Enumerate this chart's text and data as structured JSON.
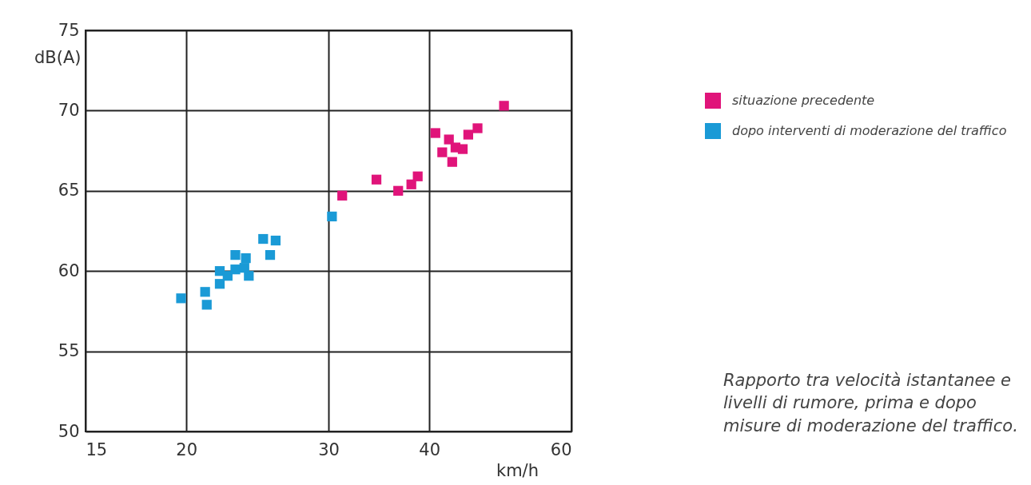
{
  "chart_data": {
    "type": "scatter",
    "xlabel": "km/h",
    "ylabel": "dB(A)",
    "log": "x",
    "xlim": [
      15,
      60
    ],
    "xticks": [
      15,
      20,
      30,
      40,
      60
    ],
    "ylim": [
      50,
      75
    ],
    "yticks": [
      50,
      55,
      60,
      65,
      70,
      75
    ],
    "grid": true,
    "marker": "square",
    "legend": "right",
    "series": [
      {
        "name": "situazione precedente",
        "color": "#e0147a",
        "x": [
          31.2,
          34.4,
          36.6,
          38.0,
          38.7,
          40.7,
          41.5,
          42.3,
          42.7,
          43.1,
          44.0,
          44.7,
          45.9,
          49.5
        ],
        "values": [
          64.7,
          65.7,
          65.0,
          65.4,
          65.9,
          68.6,
          67.4,
          68.2,
          66.8,
          67.7,
          67.6,
          68.5,
          68.9,
          70.3
        ]
      },
      {
        "name": "dopo interventi di moderazione del traffico",
        "color": "#1a9ad6",
        "x": [
          19.7,
          21.1,
          21.2,
          22.0,
          22.0,
          22.5,
          23.0,
          23.0,
          23.6,
          23.7,
          23.9,
          24.9,
          25.4,
          25.8,
          30.3
        ],
        "values": [
          58.3,
          58.7,
          57.9,
          59.2,
          60.0,
          59.7,
          60.1,
          61.0,
          60.2,
          60.8,
          59.7,
          62.0,
          61.0,
          61.9,
          63.4
        ]
      }
    ],
    "annotations": [
      "Rapporto tra velocità istantanee e livelli di rumore, prima e dopo misure di moderazione del traffico."
    ]
  }
}
